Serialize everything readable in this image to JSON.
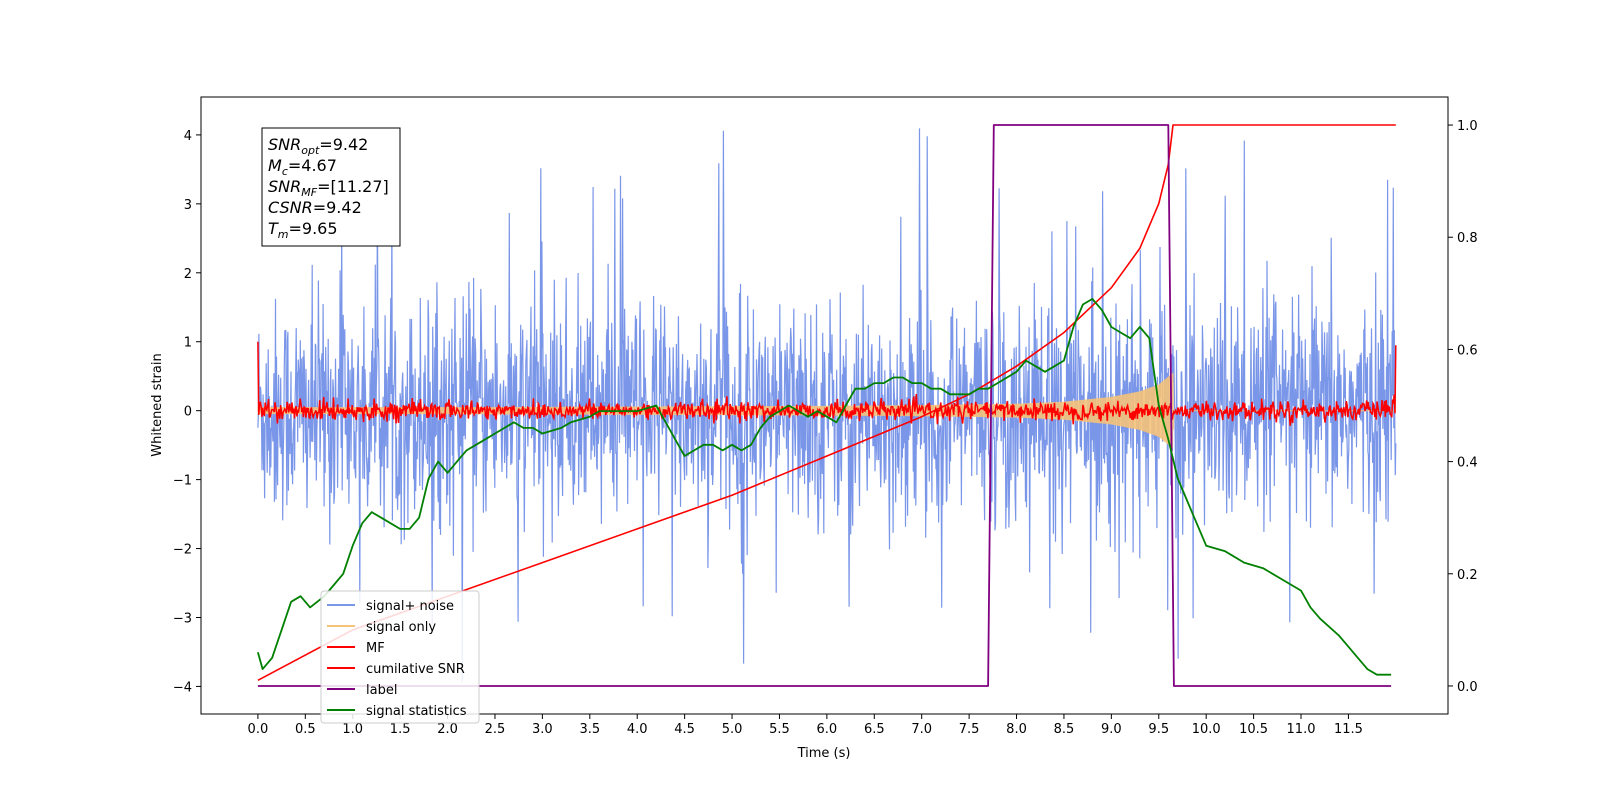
{
  "chart_data": {
    "type": "line",
    "xlabel": "Time (s)",
    "ylabel": "Whitened strain",
    "xlim": [
      -0.6,
      12.55
    ],
    "ylim": [
      -4.4,
      4.55
    ],
    "ylim_right": [
      -0.05,
      1.05
    ],
    "x_ticks": [
      "0.0",
      "0.5",
      "1.0",
      "1.5",
      "2.0",
      "2.5",
      "3.0",
      "3.5",
      "4.0",
      "4.5",
      "5.0",
      "5.5",
      "6.0",
      "6.5",
      "7.0",
      "7.5",
      "8.0",
      "8.5",
      "9.0",
      "9.5",
      "10.0",
      "10.5",
      "11.0",
      "11.5"
    ],
    "y_ticks_left": [
      "−4",
      "−3",
      "−2",
      "−1",
      "0",
      "1",
      "2",
      "3",
      "4"
    ],
    "y_ticks_right": [
      "0.0",
      "0.2",
      "0.4",
      "0.6",
      "0.8",
      "1.0"
    ],
    "annotation": {
      "lines": [
        {
          "main": "SNR",
          "sub": "opt",
          "rest": "=9.42"
        },
        {
          "main": "M",
          "sub": "c",
          "rest": "=4.67"
        },
        {
          "main": "SNR",
          "sub": "MF",
          "rest": "=[11.27]"
        },
        {
          "main": "CSNR",
          "sub": "",
          "rest": "=9.42"
        },
        {
          "main": "T",
          "sub": "m",
          "rest": "=9.65"
        }
      ]
    },
    "series": [
      {
        "name": "signal+ noise",
        "color": "#7a96e8",
        "axis": "left",
        "description": "noisy whitened strain, ~N(0,1) with occasional spikes up to about 4.2",
        "x_range": [
          0,
          12
        ],
        "amplitude_std": 0.8
      },
      {
        "name": "signal only",
        "color": "#f5c27a",
        "axis": "left",
        "description": "chirp envelope growing to about 0.55 at t=9.65 then 0",
        "x": [
          0,
          2,
          4,
          6,
          7,
          8,
          8.5,
          9,
          9.3,
          9.5,
          9.65,
          9.66,
          12
        ],
        "envelope": [
          0.05,
          0.05,
          0.06,
          0.07,
          0.08,
          0.1,
          0.13,
          0.2,
          0.28,
          0.38,
          0.55,
          0,
          0
        ]
      },
      {
        "name": "MF",
        "color": "#ff0000",
        "axis": "left",
        "description": "matched-filter output: noise of ~0.1 around 0, spikes to 1.0 at t=0 and 0.95 at t=12",
        "x_range": [
          0,
          12
        ],
        "edge_values": [
          1.0,
          0.95
        ]
      },
      {
        "name": "cumilative SNR",
        "color": "#ff0000",
        "axis": "right",
        "x": [
          0,
          1,
          2,
          3,
          4,
          5,
          6,
          7,
          7.5,
          8,
          8.5,
          9,
          9.3,
          9.5,
          9.6,
          9.65,
          9.66,
          12
        ],
        "values": [
          0.01,
          0.1,
          0.16,
          0.22,
          0.28,
          0.34,
          0.41,
          0.48,
          0.52,
          0.57,
          0.63,
          0.71,
          0.78,
          0.86,
          0.93,
          1.0,
          1.0,
          1.0
        ]
      },
      {
        "name": "label",
        "color": "#800080",
        "axis": "right",
        "x": [
          0,
          7.7,
          7.76,
          9.6,
          9.66,
          11.95
        ],
        "values": [
          0,
          0,
          1,
          1,
          0,
          0
        ]
      },
      {
        "name": "signal statistics",
        "color": "#008000",
        "axis": "right",
        "x": [
          0,
          0.05,
          0.15,
          0.25,
          0.35,
          0.45,
          0.55,
          0.7,
          0.8,
          0.9,
          1.0,
          1.1,
          1.2,
          1.3,
          1.4,
          1.5,
          1.6,
          1.7,
          1.8,
          1.9,
          2.0,
          2.1,
          2.2,
          2.3,
          2.4,
          2.5,
          2.6,
          2.7,
          2.8,
          2.9,
          3.0,
          3.2,
          3.3,
          3.5,
          3.6,
          3.8,
          4.0,
          4.2,
          4.3,
          4.4,
          4.5,
          4.6,
          4.7,
          4.8,
          4.9,
          5.0,
          5.1,
          5.2,
          5.3,
          5.4,
          5.5,
          5.6,
          5.7,
          5.8,
          5.9,
          6.0,
          6.1,
          6.2,
          6.3,
          6.4,
          6.5,
          6.6,
          6.7,
          6.8,
          6.9,
          7.0,
          7.1,
          7.2,
          7.3,
          7.4,
          7.5,
          7.6,
          7.7,
          7.8,
          7.9,
          8.0,
          8.1,
          8.2,
          8.3,
          8.4,
          8.5,
          8.6,
          8.7,
          8.8,
          8.9,
          9.0,
          9.1,
          9.2,
          9.3,
          9.4,
          9.5,
          9.6,
          9.7,
          9.8,
          9.9,
          10.0,
          10.2,
          10.4,
          10.6,
          10.8,
          11.0,
          11.1,
          11.2,
          11.4,
          11.5,
          11.6,
          11.7,
          11.8,
          11.9,
          11.95
        ],
        "values": [
          0.06,
          0.03,
          0.05,
          0.1,
          0.15,
          0.16,
          0.14,
          0.16,
          0.18,
          0.2,
          0.25,
          0.29,
          0.31,
          0.3,
          0.29,
          0.28,
          0.28,
          0.3,
          0.37,
          0.4,
          0.38,
          0.4,
          0.42,
          0.43,
          0.44,
          0.45,
          0.46,
          0.47,
          0.46,
          0.46,
          0.45,
          0.46,
          0.47,
          0.48,
          0.49,
          0.49,
          0.49,
          0.5,
          0.47,
          0.44,
          0.41,
          0.42,
          0.43,
          0.43,
          0.42,
          0.43,
          0.42,
          0.43,
          0.46,
          0.48,
          0.49,
          0.5,
          0.49,
          0.48,
          0.49,
          0.48,
          0.47,
          0.5,
          0.53,
          0.53,
          0.54,
          0.54,
          0.55,
          0.55,
          0.54,
          0.54,
          0.53,
          0.53,
          0.52,
          0.52,
          0.52,
          0.53,
          0.53,
          0.54,
          0.55,
          0.56,
          0.58,
          0.57,
          0.56,
          0.57,
          0.58,
          0.64,
          0.68,
          0.69,
          0.67,
          0.64,
          0.63,
          0.62,
          0.64,
          0.62,
          0.5,
          0.44,
          0.37,
          0.33,
          0.29,
          0.25,
          0.24,
          0.22,
          0.21,
          0.19,
          0.17,
          0.14,
          0.12,
          0.09,
          0.07,
          0.05,
          0.03,
          0.02,
          0.02,
          0.02
        ]
      }
    ],
    "legend": {
      "placement": "lower-left",
      "entries": [
        "signal+ noise",
        "signal only",
        "MF",
        "cumilative SNR",
        "label",
        "signal statistics"
      ]
    }
  }
}
